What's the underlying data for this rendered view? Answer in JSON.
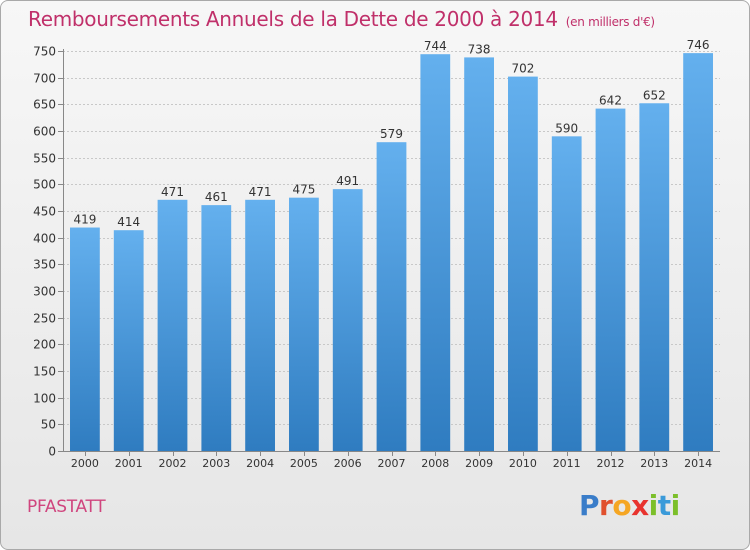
{
  "colors": {
    "title": "#c0306a",
    "bar_top": "#64b0ee",
    "bar_bottom": "#2f7cc0",
    "grid": "#c8c8c8",
    "axis": "#888888"
  },
  "chart_data": {
    "type": "bar",
    "title": "Remboursements Annuels de la Dette de 2000 à 2014",
    "subtitle": "(en milliers d'€)",
    "xlabel": "",
    "ylabel": "",
    "ylim": [
      0,
      750
    ],
    "ytick_step": 50,
    "grid": true,
    "categories": [
      "2000",
      "2001",
      "2002",
      "2003",
      "2004",
      "2005",
      "2006",
      "2007",
      "2008",
      "2009",
      "2010",
      "2011",
      "2012",
      "2013",
      "2014"
    ],
    "values": [
      419,
      414,
      471,
      461,
      471,
      475,
      491,
      579,
      744,
      738,
      702,
      590,
      642,
      652,
      746
    ]
  },
  "footer": {
    "commune": "PFASTATT",
    "logo_letters": [
      {
        "ch": "P",
        "color": "#3a7dc9"
      },
      {
        "ch": "r",
        "color": "#e0502e"
      },
      {
        "ch": "o",
        "color": "#f5a623"
      },
      {
        "ch": "x",
        "color": "#e8332e"
      },
      {
        "ch": "i",
        "color": "#7cbf2a"
      },
      {
        "ch": "t",
        "color": "#3a9ad9"
      },
      {
        "ch": "i",
        "color": "#7cbf2a"
      }
    ]
  }
}
